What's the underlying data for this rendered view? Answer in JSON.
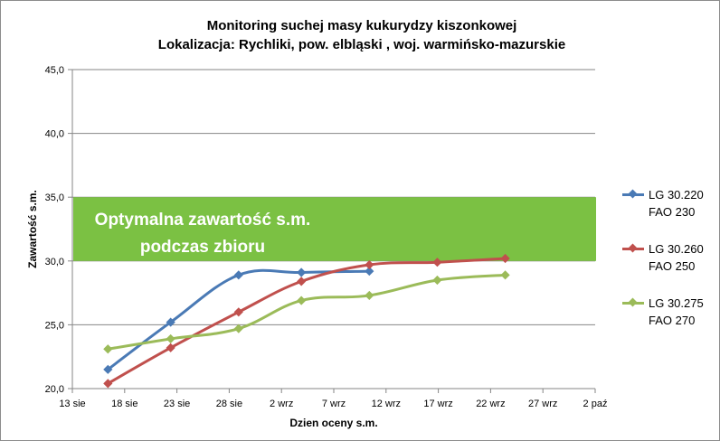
{
  "chart_data": {
    "type": "line",
    "title_line1": "Monitoring suchej masy kukurydzy kiszonkowej",
    "title_line2": "Lokalizacja: Rychliki, pow. elbląski , woj. warmińsko-mazurskie",
    "xlabel": "Dzien oceny s.m.",
    "ylabel": "Zawartość s.m.",
    "x_ticks": [
      "13 sie",
      "18 sie",
      "23 sie",
      "28 sie",
      "2 wrz",
      "7 wrz",
      "12 wrz",
      "17 wrz",
      "22 wrz",
      "27 wrz",
      "2 paź"
    ],
    "y_ticks": [
      "20,0",
      "25,0",
      "30,0",
      "35,0",
      "40,0",
      "45,0"
    ],
    "ylim": [
      20,
      45
    ],
    "x_range_days": [
      0,
      50
    ],
    "band": {
      "from": 30,
      "to": 35,
      "label_line1": "Optymalna zawartość s.m.",
      "label_line2": "podczas zbioru",
      "color": "#7bc143"
    },
    "legend_position": "right",
    "grid": "horizontal",
    "series": [
      {
        "name": "LG 30.220\nFAO 230",
        "color": "#4a7ab5",
        "x": [
          3.4,
          9.4,
          15.9,
          21.9,
          28.4
        ],
        "y": [
          21.5,
          25.2,
          28.9,
          29.1,
          29.2
        ]
      },
      {
        "name": "LG 30.260\nFAO 250",
        "color": "#c0504d",
        "x": [
          3.4,
          9.4,
          15.9,
          21.9,
          28.4,
          34.9,
          41.4
        ],
        "y": [
          20.4,
          23.2,
          26.0,
          28.4,
          29.7,
          29.9,
          30.2
        ]
      },
      {
        "name": "LG 30.275\nFAO 270",
        "color": "#9bbb59",
        "x": [
          3.4,
          9.4,
          15.9,
          21.9,
          28.4,
          34.9,
          41.4
        ],
        "y": [
          23.1,
          23.9,
          24.7,
          26.9,
          27.3,
          28.5,
          28.9
        ]
      }
    ]
  }
}
